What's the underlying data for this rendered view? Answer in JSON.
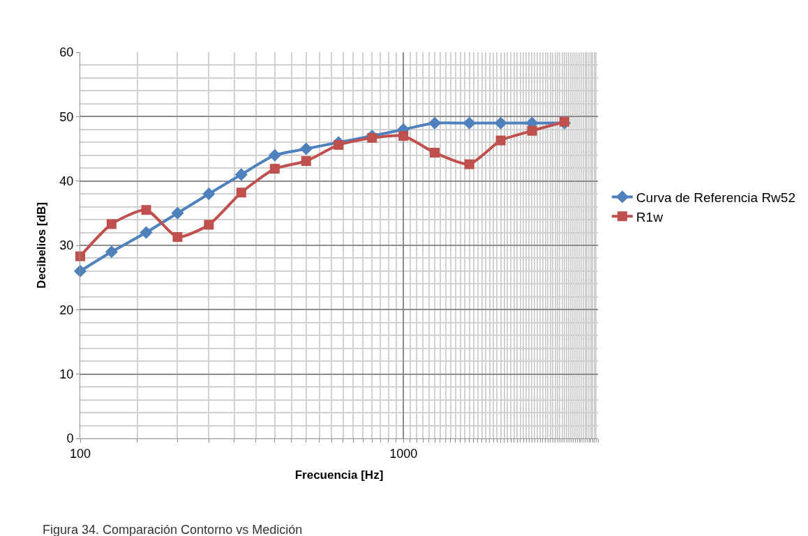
{
  "chart_data": {
    "type": "line",
    "xlabel": "Frecuencia [Hz]",
    "ylabel": "Decibelios [dB]",
    "annotations": [
      "Figura 34. Comparación Contorno vs Medición"
    ],
    "x": [
      100,
      125,
      160,
      200,
      250,
      315,
      400,
      500,
      630,
      800,
      1000,
      1250,
      1600,
      2000,
      2500,
      3150
    ],
    "series": [
      {
        "name": "Curva de Referencia Rw52",
        "color": "#4f81bd",
        "marker": "diamond",
        "values": [
          26,
          29,
          32,
          35,
          38,
          41,
          44,
          45,
          46,
          47,
          48,
          49,
          49,
          49,
          49,
          49
        ]
      },
      {
        "name": "R1w",
        "color": "#c0504d",
        "marker": "square",
        "values": [
          28.3,
          33.3,
          35.5,
          31.3,
          33.2,
          38.2,
          41.9,
          43.1,
          45.6,
          46.7,
          47,
          44.4,
          42.6,
          46.3,
          47.8,
          49.2
        ]
      }
    ],
    "log": "x",
    "xlim": [
      100,
      4000
    ],
    "xticks": [
      100,
      1000
    ],
    "ylim": [
      0,
      60
    ],
    "yticks": [
      0,
      10,
      20,
      30,
      40,
      50,
      60
    ],
    "grid": true,
    "legend": "right",
    "line_style": "solid"
  }
}
